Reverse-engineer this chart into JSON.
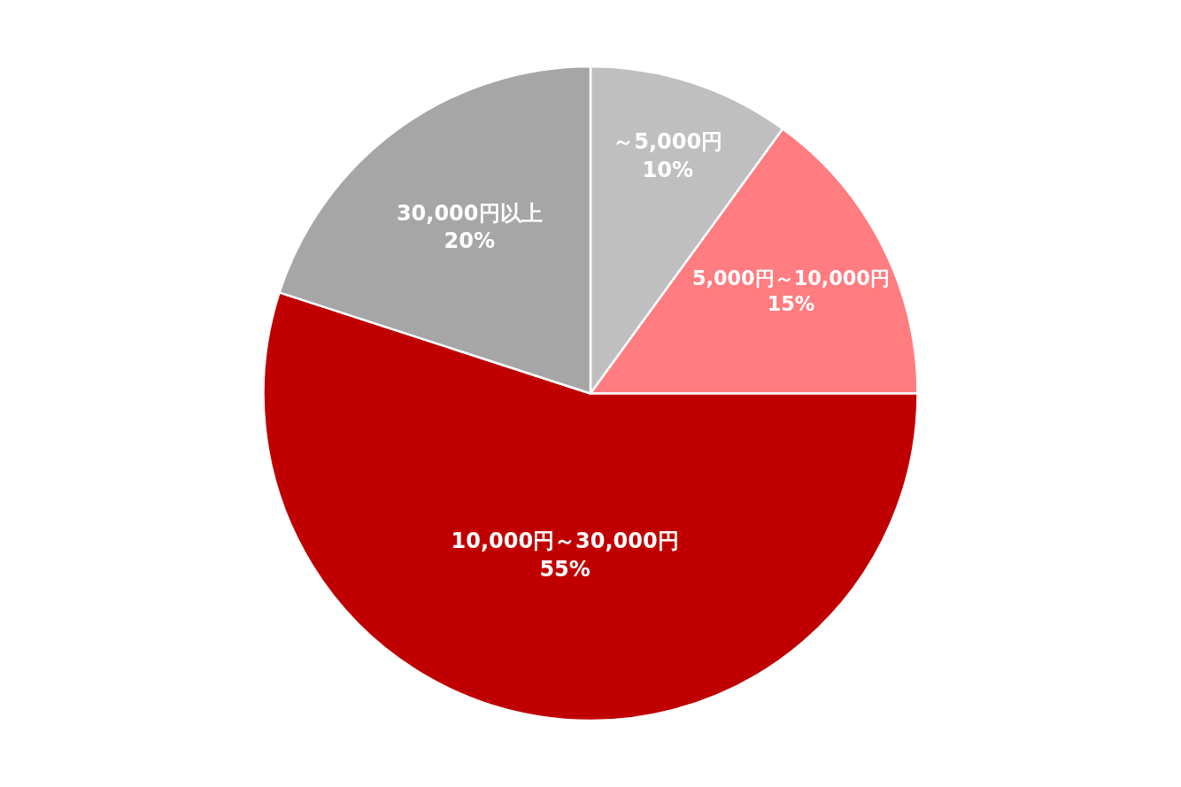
{
  "chart_data": {
    "type": "pie",
    "categories": [
      "～5,000円",
      "5,000円～10,000円",
      "10,000円～30,000円",
      "30,000円以上"
    ],
    "values": [
      10,
      15,
      55,
      20
    ],
    "value_labels": [
      "10%",
      "15%",
      "55%",
      "20%"
    ],
    "colors": [
      "#bfbfbf",
      "#ff7c80",
      "#c00000",
      "#a6a6a6"
    ],
    "legend": false
  }
}
